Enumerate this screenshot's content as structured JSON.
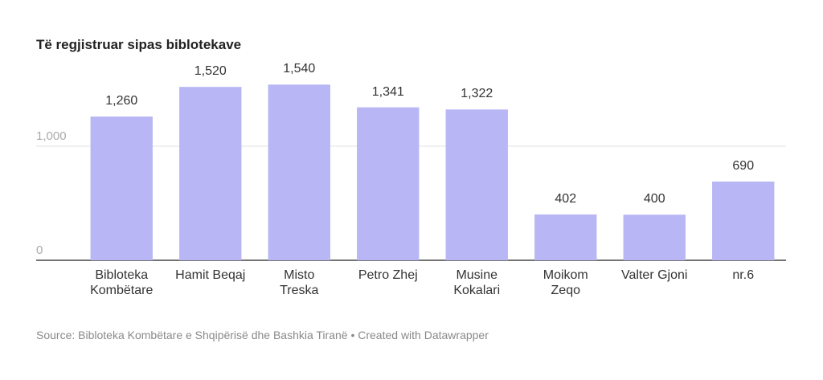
{
  "chart_data": {
    "type": "bar",
    "title": "Të regjistruar sipas biblotekave",
    "categories": [
      "Bibloteka\nKombëtare",
      "Hamit Beqaj",
      "Misto\nTreska",
      "Petro Zhej",
      "Musine\nKokalari",
      "Moikom\nZeqo",
      "Valter Gjoni",
      "nr.6"
    ],
    "values": [
      1260,
      1520,
      1540,
      1341,
      1322,
      402,
      400,
      690
    ],
    "value_labels": [
      "1,260",
      "1,520",
      "1,540",
      "1,341",
      "1,322",
      "402",
      "400",
      "690"
    ],
    "color": "#b8b6f4",
    "ylim": [
      0,
      1600
    ],
    "yticks": [
      0,
      {
        "value": 1000,
        "label": "1,000"
      }
    ],
    "grid": true,
    "source": "Source: Bibloteka Kombëtare e Shqipërisë dhe Bashkia Tiranë • Created with Datawrapper"
  }
}
